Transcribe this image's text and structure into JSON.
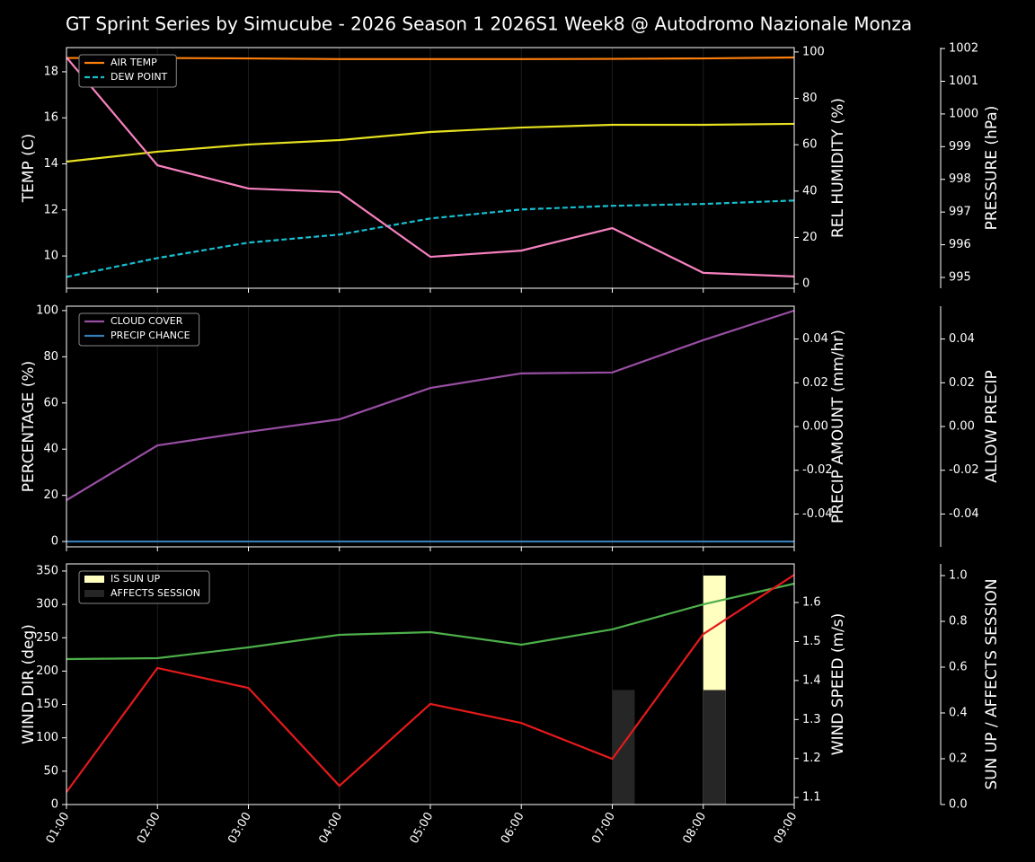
{
  "title": "GT Sprint Series by Simucube - 2026 Season 1 2026S1 Week8 @ Autodromo Nazionale Monza",
  "chart_data": [
    {
      "type": "line",
      "categories": [
        "01:00",
        "02:00",
        "03:00",
        "04:00",
        "05:00",
        "06:00",
        "07:00",
        "08:00",
        "09:00"
      ],
      "grid": true,
      "ylabel": "TEMP (C)",
      "ylabel_color": "#ffffff",
      "ylim": [
        8.6,
        19.05
      ],
      "yticks": [
        10,
        12,
        14,
        16,
        18
      ],
      "y2label": "REL HUMIDITY (%)",
      "y2label_color": "#e5e020",
      "y2lim": [
        -1.9,
        101.9
      ],
      "y2ticks": [
        0,
        20,
        40,
        60,
        80,
        100
      ],
      "y3label": "PRESSURE (hPa)",
      "y3label_color": "#f781bf",
      "y3lim": [
        994.67,
        1002.03
      ],
      "y3ticks": [
        995,
        996,
        997,
        998,
        999,
        1000,
        1001,
        1002
      ],
      "series": [
        {
          "name": "AIR TEMP",
          "color": "#ff7f0e",
          "axis": "y",
          "values": [
            18.6,
            18.6,
            18.58,
            18.55,
            18.55,
            18.55,
            18.56,
            18.58,
            18.62
          ]
        },
        {
          "name": "DEW POINT",
          "color": "#17becf",
          "axis": "y",
          "dashed": true,
          "values": [
            9.09,
            9.91,
            10.58,
            10.93,
            11.63,
            12.02,
            12.18,
            12.26,
            12.41
          ]
        },
        {
          "color": "#e5e020",
          "axis": "y2",
          "values": [
            52.7,
            57.0,
            60.1,
            62.0,
            65.5,
            67.4,
            68.6,
            68.6,
            69.0
          ]
        },
        {
          "color": "#f781bf",
          "axis": "y3",
          "values": [
            1001.73,
            998.43,
            997.72,
            997.61,
            995.63,
            995.82,
            996.51,
            995.14,
            995.03
          ]
        }
      ]
    },
    {
      "type": "line",
      "categories": [
        "01:00",
        "02:00",
        "03:00",
        "04:00",
        "05:00",
        "06:00",
        "07:00",
        "08:00",
        "09:00"
      ],
      "grid": true,
      "ylabel": "PERCENTAGE (%)",
      "ylabel_color": "#ffffff",
      "ylim": [
        -2.3,
        101.9
      ],
      "yticks": [
        0,
        20,
        40,
        60,
        80,
        100
      ],
      "y2label": "PRECIP AMOUNT (mm/hr)",
      "y2label_color": "#a0522d",
      "y2lim": [
        -0.055,
        0.055
      ],
      "y2ticks": [
        -0.04,
        -0.02,
        {
          "value": 0,
          "label": "0.00"
        },
        0.02,
        0.04
      ],
      "y3label": "ALLOW PRECIP",
      "y3label_color": "#ffffff",
      "y3lim": [
        -0.055,
        0.055
      ],
      "y3ticks": [
        -0.04,
        -0.02,
        {
          "value": 0,
          "label": "0.00"
        },
        0.02,
        0.04
      ],
      "series": [
        {
          "name": "CLOUD COVER",
          "color": "#984ea3",
          "axis": "y",
          "values": [
            17.9,
            41.6,
            47.5,
            52.9,
            66.5,
            72.8,
            73.2,
            87.2,
            100
          ]
        },
        {
          "name": "PRECIP CHANCE",
          "color": "#377eb8",
          "axis": "y",
          "values": [
            0,
            0,
            0,
            0,
            0,
            0,
            0,
            0,
            0
          ]
        }
      ]
    },
    {
      "type": "line",
      "categories": [
        "01:00",
        "02:00",
        "03:00",
        "04:00",
        "05:00",
        "06:00",
        "07:00",
        "08:00",
        "09:00"
      ],
      "grid": true,
      "xticklabels": true,
      "ylabel": "WIND DIR (deg)",
      "ylabel_color": "#4daf4a",
      "ylim": [
        0,
        360.7
      ],
      "yticks": [
        0,
        50,
        100,
        150,
        200,
        250,
        300,
        350
      ],
      "y2label": "WIND SPEED (m/s)",
      "y2label_color": "#e41a1c",
      "y2lim": [
        1.082,
        1.699
      ],
      "y2ticks": [
        1.1,
        1.2,
        1.3,
        1.4,
        1.5,
        1.6
      ],
      "y3label": "SUN UP / AFFECTS SESSION",
      "y3label_color": "#ffffff",
      "y3lim": [
        0,
        1.051
      ],
      "y3ticks": [
        {
          "value": 0,
          "label": "0.0"
        },
        0.2,
        0.4,
        0.6,
        0.8,
        {
          "value": 1,
          "label": "1.0"
        }
      ],
      "series": [
        {
          "name": "IS SUN UP",
          "kind": "bar",
          "color": "#ffffc0",
          "axis": "y3",
          "values": [
            0,
            0,
            0,
            0,
            0,
            0,
            0,
            1,
            0
          ]
        },
        {
          "name": "AFFECTS SESSION",
          "kind": "bar",
          "color": "#262626",
          "axis": "y3",
          "values": [
            0,
            0,
            0,
            0,
            0,
            0,
            0.5,
            0.5,
            0
          ]
        },
        {
          "color": "#4daf4a",
          "axis": "y",
          "values": [
            218.0,
            219.4,
            235.5,
            254.4,
            258.4,
            239.6,
            262.5,
            300.1,
            331.1
          ]
        },
        {
          "color": "#e41a1c",
          "axis": "y2",
          "values": [
            1.114,
            1.432,
            1.381,
            1.13,
            1.34,
            1.291,
            1.199,
            1.519,
            1.671
          ]
        }
      ]
    }
  ]
}
